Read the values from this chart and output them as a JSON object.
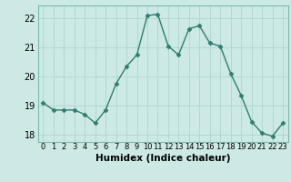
{
  "x": [
    0,
    1,
    2,
    3,
    4,
    5,
    6,
    7,
    8,
    9,
    10,
    11,
    12,
    13,
    14,
    15,
    16,
    17,
    18,
    19,
    20,
    21,
    22,
    23
  ],
  "y": [
    19.1,
    18.85,
    18.85,
    18.85,
    18.7,
    18.4,
    18.85,
    19.75,
    20.35,
    20.75,
    22.1,
    22.15,
    21.05,
    20.75,
    21.65,
    21.75,
    21.15,
    21.05,
    20.1,
    19.35,
    18.45,
    18.05,
    17.95,
    18.4
  ],
  "line_color": "#2e7d6e",
  "marker": "D",
  "marker_size": 2.5,
  "bg_color": "#cce9e5",
  "grid_color": "#b0d4cf",
  "xlabel": "Humidex (Indice chaleur)",
  "xlim": [
    -0.5,
    23.5
  ],
  "ylim": [
    17.75,
    22.45
  ],
  "yticks": [
    18,
    19,
    20,
    21,
    22
  ],
  "xticks": [
    0,
    1,
    2,
    3,
    4,
    5,
    6,
    7,
    8,
    9,
    10,
    11,
    12,
    13,
    14,
    15,
    16,
    17,
    18,
    19,
    20,
    21,
    22,
    23
  ],
  "xlabel_fontsize": 7.5,
  "ytick_fontsize": 7,
  "xtick_fontsize": 6
}
